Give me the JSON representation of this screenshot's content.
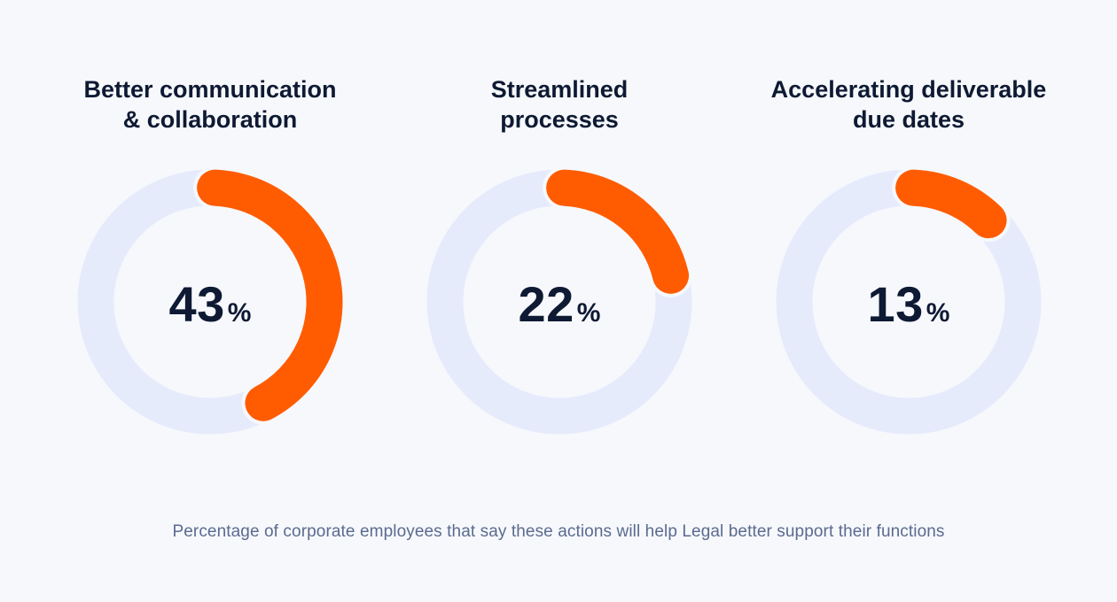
{
  "colors": {
    "background": "#F6F8FC",
    "track": "#E6EBFC",
    "accent": "#FF5C02",
    "text": "#0E1A33",
    "caption": "#5B6B8F"
  },
  "chart_data": [
    {
      "type": "pie",
      "title": "Better communication & collaboration",
      "title_lines": [
        "Better communication",
        "& collaboration"
      ],
      "value": 43,
      "value_label": "43",
      "unit": "%"
    },
    {
      "type": "pie",
      "title": "Streamlined processes",
      "title_lines": [
        "Streamlined",
        "processes"
      ],
      "value": 22,
      "value_label": "22",
      "unit": "%"
    },
    {
      "type": "pie",
      "title": "Accelerating deliverable due dates",
      "title_lines": [
        "Accelerating deliverable",
        "due dates"
      ],
      "value": 13,
      "value_label": "13",
      "unit": "%"
    }
  ],
  "caption": "Percentage of corporate employees that say these actions will help Legal better support their functions"
}
